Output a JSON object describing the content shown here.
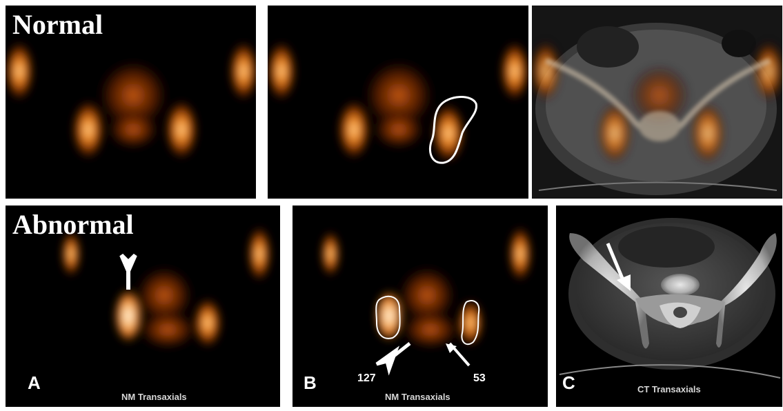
{
  "rows": {
    "top_label": "Normal",
    "bottom_label": "Abnormal"
  },
  "panels": {
    "a_letter": "A",
    "b_letter": "B",
    "c_letter": "C",
    "a_caption": "NM Transaxials",
    "b_caption": "NM Transaxials",
    "c_caption": "CT Transaxials"
  },
  "annotations": {
    "left_roi_count": "127",
    "right_roi_count": "53"
  },
  "colors": {
    "hot_core": "#ffe2b0",
    "hot_mid": "#f08a1e",
    "hot_edge": "#7a2a00",
    "roi_outline": "#ffffff",
    "divider": "#ffffff"
  }
}
